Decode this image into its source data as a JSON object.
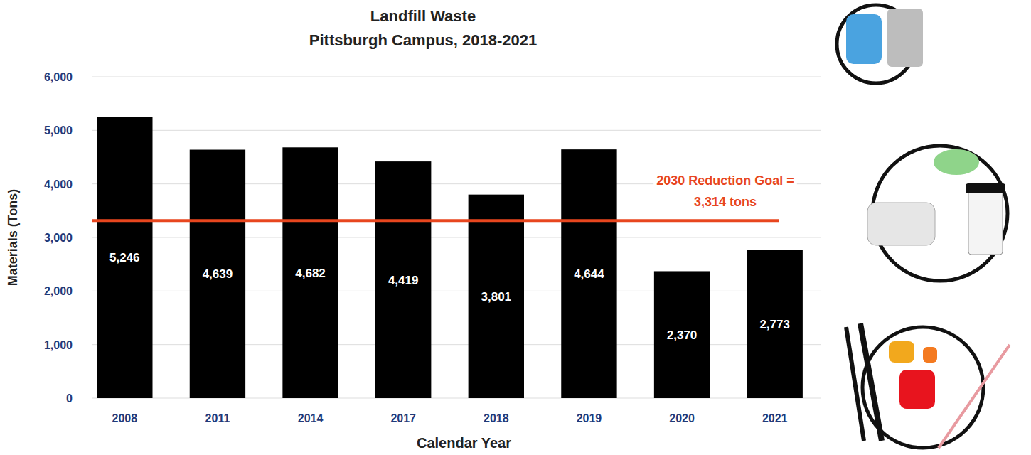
{
  "chart_data": {
    "type": "bar",
    "title": "Landfill Waste",
    "subtitle": "Pittsburgh Campus, 2018-2021",
    "x_label": "Calendar Year",
    "y_label": "Materials (Tons)",
    "categories": [
      "2008",
      "2011",
      "2014",
      "2017",
      "2018",
      "2019",
      "2020",
      "2021"
    ],
    "values": [
      5246,
      4639,
      4682,
      4419,
      3801,
      4644,
      2370,
      2773
    ],
    "value_labels": [
      "5,246",
      "4,639",
      "4,682",
      "4,419",
      "3,801",
      "4,644",
      "2,370",
      "2,773"
    ],
    "color": "#000000",
    "ylim": [
      0,
      6000
    ],
    "yticks": [
      0,
      {
        "value": 1000,
        "label": "1,000"
      },
      {
        "value": 2000,
        "label": "2,000"
      },
      {
        "value": 3000,
        "label": "3,000"
      },
      {
        "value": 4000,
        "label": "4,000"
      },
      {
        "value": 5000,
        "label": "5,000"
      },
      {
        "value": 6000,
        "label": "6,000"
      }
    ],
    "grid": true,
    "data_labels": true,
    "annotations": [
      {
        "text": "2030 Reduction Goal = 3,314 tons",
        "value": 3314,
        "color": "#e8461e"
      }
    ]
  }
}
